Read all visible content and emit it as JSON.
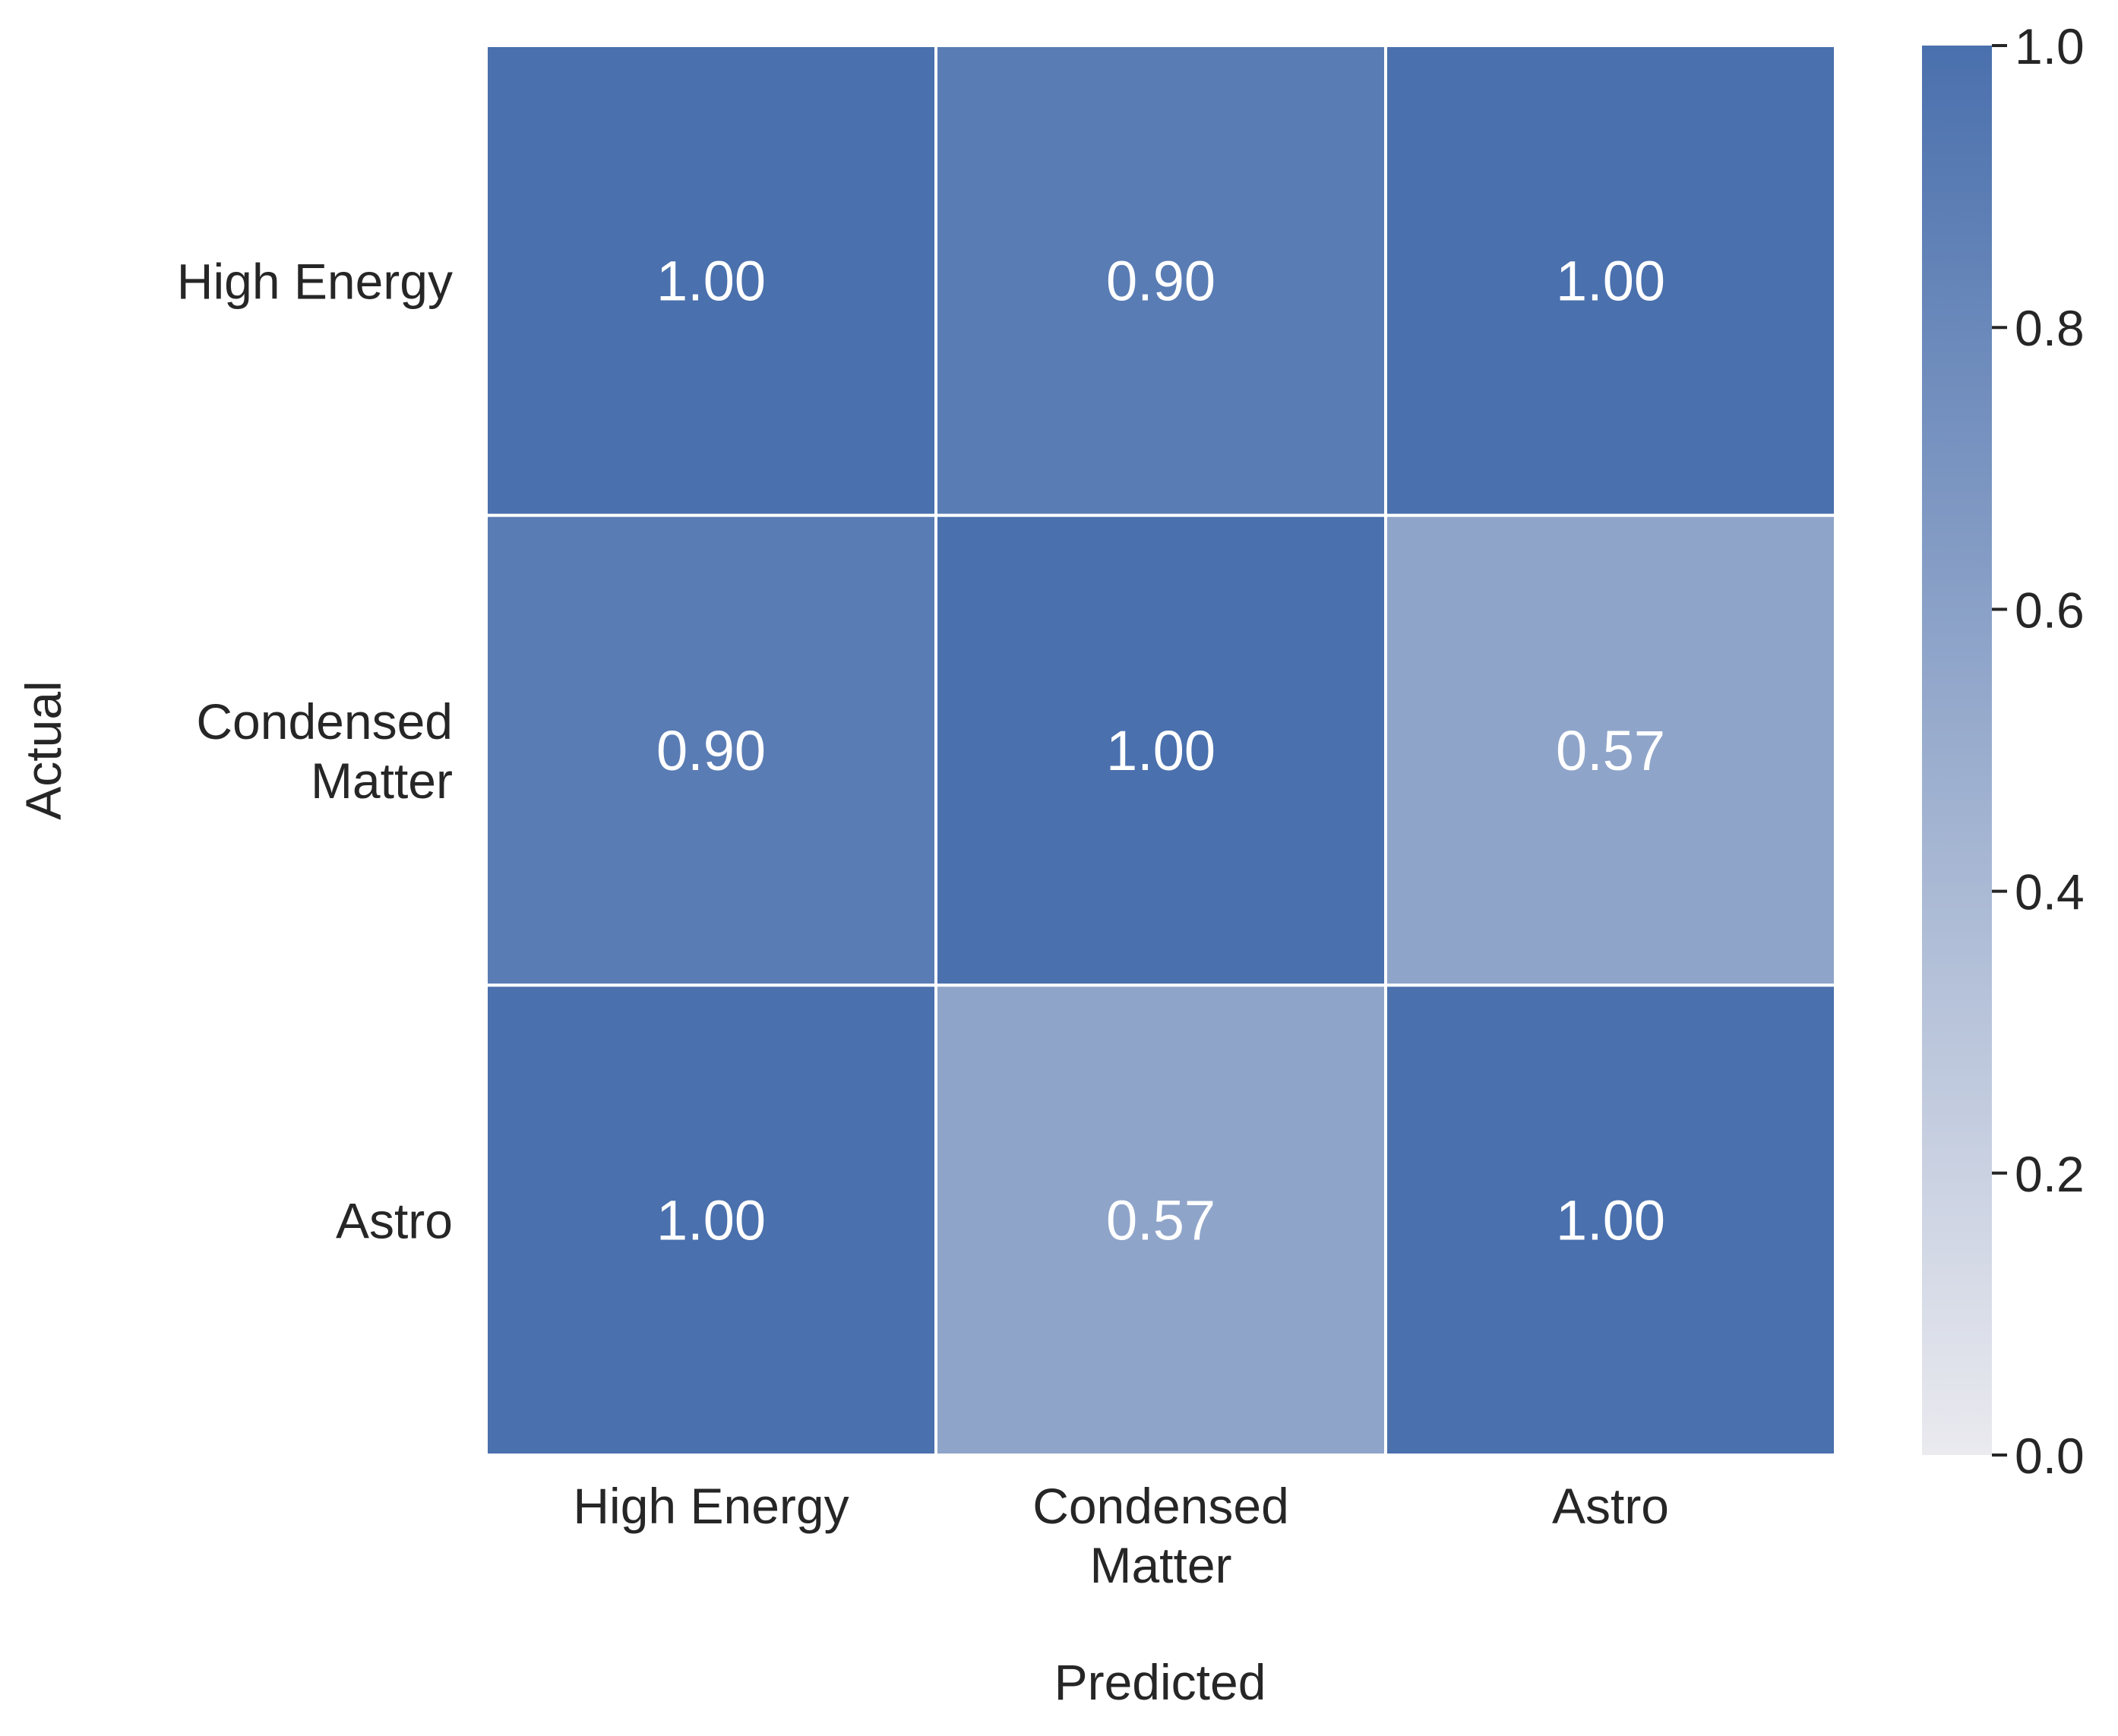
{
  "chart_data": {
    "type": "heatmap",
    "title": "",
    "xlabel": "Predicted",
    "ylabel": "Actual",
    "x_categories": [
      [
        "High Energy"
      ],
      [
        "Condensed",
        "Matter"
      ],
      [
        "Astro"
      ]
    ],
    "y_categories": [
      [
        "High Energy"
      ],
      [
        "Condensed",
        "Matter"
      ],
      [
        "Astro"
      ]
    ],
    "values": [
      [
        1.0,
        0.9,
        1.0
      ],
      [
        0.9,
        1.0,
        0.57
      ],
      [
        1.0,
        0.57,
        1.0
      ]
    ],
    "value_labels": [
      [
        "1.00",
        "0.90",
        "1.00"
      ],
      [
        "0.90",
        "1.00",
        "0.57"
      ],
      [
        "1.00",
        "0.57",
        "1.00"
      ]
    ],
    "colorbar": {
      "range": [
        0.0,
        1.0
      ],
      "ticks": [
        0.0,
        0.2,
        0.4,
        0.6,
        0.8,
        1.0
      ],
      "tick_labels": [
        "0.0",
        "0.2",
        "0.4",
        "0.6",
        "0.8",
        "1.0"
      ],
      "color_low": "#eaeaef",
      "color_high": "#4a70ad"
    },
    "cell_text_color": "#ffffff",
    "label_color": "#262626",
    "cell_border_color": "#ffffff",
    "grid": false
  }
}
